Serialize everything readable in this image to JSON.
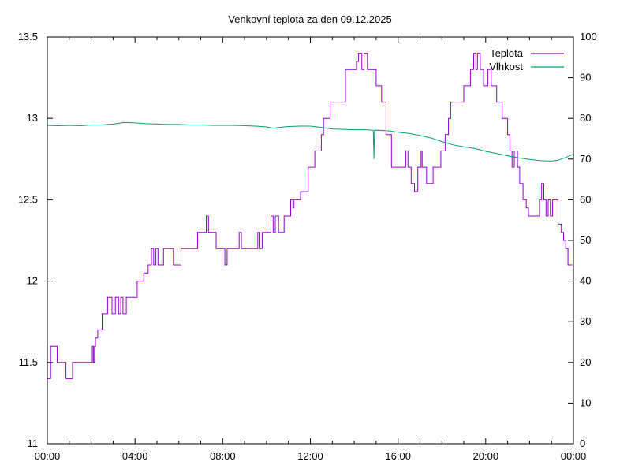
{
  "title": "Venkovní teplota za den 09.12.2025",
  "legend": [
    {
      "label": "Teplota",
      "color": "#9400d3"
    },
    {
      "label": "Vlhkost",
      "color": "#009e73"
    }
  ],
  "colors": {
    "frame": "#000000",
    "text": "#000000",
    "background": "#ffffff"
  },
  "chart_data": {
    "type": "line",
    "title": "Venkovní teplota za den 09.12.2025",
    "xlabel": "",
    "ylabel_left": "",
    "ylabel_right": "",
    "x_unit": "hours",
    "xlim": [
      0,
      24
    ],
    "ylim_left": [
      11,
      13.5
    ],
    "ylim_right": [
      0,
      100
    ],
    "grid": false,
    "legend_position": "top-right-inside",
    "x_ticks_major": [
      0,
      4,
      8,
      12,
      16,
      20,
      24
    ],
    "x_tick_labels": [
      "00:00",
      "04:00",
      "08:00",
      "12:00",
      "16:00",
      "20:00",
      "00:00"
    ],
    "x_ticks_minor": [
      1,
      2,
      3,
      5,
      6,
      7,
      9,
      10,
      11,
      13,
      14,
      15,
      17,
      18,
      19,
      21,
      22,
      23
    ],
    "y_left_ticks": [
      11,
      11.5,
      12,
      12.5,
      13,
      13.5
    ],
    "y_left_tick_labels": [
      "11",
      "11.5",
      "12",
      "12.5",
      "13",
      "13.5"
    ],
    "y_right_ticks": [
      0,
      10,
      20,
      30,
      40,
      50,
      60,
      70,
      80,
      90,
      100
    ],
    "y_right_tick_labels": [
      "0",
      "10",
      "20",
      "30",
      "40",
      "50",
      "60",
      "70",
      "80",
      "90",
      "100"
    ],
    "series": [
      {
        "name": "Teplota",
        "axis": "left",
        "color": "#9400d3",
        "mode": "steps-post",
        "points": [
          [
            0.0,
            11.4
          ],
          [
            0.15,
            11.6
          ],
          [
            0.45,
            11.5
          ],
          [
            0.85,
            11.4
          ],
          [
            1.15,
            11.5
          ],
          [
            2.05,
            11.6
          ],
          [
            2.1,
            11.5
          ],
          [
            2.15,
            11.6
          ],
          [
            2.2,
            11.65
          ],
          [
            2.3,
            11.7
          ],
          [
            2.5,
            11.8
          ],
          [
            2.75,
            11.9
          ],
          [
            2.95,
            11.8
          ],
          [
            3.1,
            11.9
          ],
          [
            3.25,
            11.8
          ],
          [
            3.35,
            11.9
          ],
          [
            3.45,
            11.8
          ],
          [
            3.6,
            11.9
          ],
          [
            4.1,
            12.0
          ],
          [
            4.4,
            12.05
          ],
          [
            4.6,
            12.1
          ],
          [
            4.75,
            12.2
          ],
          [
            4.85,
            12.1
          ],
          [
            4.95,
            12.2
          ],
          [
            5.05,
            12.1
          ],
          [
            5.3,
            12.2
          ],
          [
            5.75,
            12.1
          ],
          [
            6.1,
            12.2
          ],
          [
            6.85,
            12.3
          ],
          [
            7.25,
            12.4
          ],
          [
            7.35,
            12.3
          ],
          [
            7.7,
            12.2
          ],
          [
            8.1,
            12.1
          ],
          [
            8.2,
            12.2
          ],
          [
            8.75,
            12.3
          ],
          [
            8.85,
            12.2
          ],
          [
            9.6,
            12.3
          ],
          [
            9.7,
            12.2
          ],
          [
            9.8,
            12.3
          ],
          [
            10.2,
            12.4
          ],
          [
            10.3,
            12.3
          ],
          [
            10.4,
            12.4
          ],
          [
            10.55,
            12.3
          ],
          [
            10.8,
            12.4
          ],
          [
            11.1,
            12.5
          ],
          [
            11.2,
            12.45
          ],
          [
            11.25,
            12.5
          ],
          [
            11.55,
            12.55
          ],
          [
            11.9,
            12.7
          ],
          [
            12.2,
            12.8
          ],
          [
            12.5,
            12.9
          ],
          [
            12.6,
            13.0
          ],
          [
            12.9,
            13.1
          ],
          [
            13.6,
            13.3
          ],
          [
            14.1,
            13.35
          ],
          [
            14.2,
            13.4
          ],
          [
            14.35,
            13.3
          ],
          [
            14.45,
            13.4
          ],
          [
            14.6,
            13.3
          ],
          [
            15.0,
            13.2
          ],
          [
            15.25,
            13.1
          ],
          [
            15.45,
            12.9
          ],
          [
            15.7,
            12.7
          ],
          [
            16.35,
            12.8
          ],
          [
            16.45,
            12.7
          ],
          [
            16.6,
            12.6
          ],
          [
            16.75,
            12.55
          ],
          [
            16.9,
            12.7
          ],
          [
            17.05,
            12.8
          ],
          [
            17.1,
            12.7
          ],
          [
            17.3,
            12.6
          ],
          [
            17.6,
            12.7
          ],
          [
            17.95,
            12.8
          ],
          [
            18.15,
            12.9
          ],
          [
            18.3,
            13.0
          ],
          [
            18.4,
            13.1
          ],
          [
            19.0,
            13.2
          ],
          [
            19.3,
            13.3
          ],
          [
            19.45,
            13.4
          ],
          [
            19.55,
            13.3
          ],
          [
            19.62,
            13.4
          ],
          [
            19.75,
            13.3
          ],
          [
            19.9,
            13.2
          ],
          [
            20.1,
            13.3
          ],
          [
            20.25,
            13.2
          ],
          [
            20.5,
            13.1
          ],
          [
            20.75,
            13.0
          ],
          [
            21.0,
            12.9
          ],
          [
            21.1,
            12.8
          ],
          [
            21.2,
            12.7
          ],
          [
            21.3,
            12.8
          ],
          [
            21.45,
            12.7
          ],
          [
            21.55,
            12.6
          ],
          [
            21.7,
            12.5
          ],
          [
            21.85,
            12.45
          ],
          [
            21.95,
            12.4
          ],
          [
            22.45,
            12.5
          ],
          [
            22.55,
            12.6
          ],
          [
            22.65,
            12.5
          ],
          [
            22.75,
            12.4
          ],
          [
            22.85,
            12.5
          ],
          [
            22.95,
            12.4
          ],
          [
            23.05,
            12.5
          ],
          [
            23.3,
            12.35
          ],
          [
            23.45,
            12.3
          ],
          [
            23.55,
            12.25
          ],
          [
            23.65,
            12.2
          ],
          [
            23.75,
            12.1
          ],
          [
            23.95,
            12.1
          ]
        ]
      },
      {
        "name": "Vlhkost",
        "axis": "right",
        "color": "#009e73",
        "mode": "linear",
        "points": [
          [
            0,
            78.3
          ],
          [
            0.5,
            78.2
          ],
          [
            1,
            78.3
          ],
          [
            1.5,
            78.2
          ],
          [
            2,
            78.4
          ],
          [
            2.5,
            78.4
          ],
          [
            3,
            78.6
          ],
          [
            3.5,
            79.0
          ],
          [
            4,
            78.9
          ],
          [
            4.5,
            78.7
          ],
          [
            5,
            78.6
          ],
          [
            5.5,
            78.5
          ],
          [
            6,
            78.5
          ],
          [
            6.5,
            78.4
          ],
          [
            7,
            78.4
          ],
          [
            7.5,
            78.3
          ],
          [
            8,
            78.3
          ],
          [
            8.5,
            78.3
          ],
          [
            9,
            78.2
          ],
          [
            9.5,
            78.1
          ],
          [
            10,
            77.9
          ],
          [
            10.3,
            77.6
          ],
          [
            10.6,
            77.8
          ],
          [
            11,
            78.0
          ],
          [
            11.5,
            78.1
          ],
          [
            12,
            78.1
          ],
          [
            12.5,
            77.8
          ],
          [
            13,
            77.4
          ],
          [
            13.5,
            77.3
          ],
          [
            14,
            77.2
          ],
          [
            14.5,
            77.2
          ],
          [
            14.87,
            77.1
          ],
          [
            14.9,
            70.0
          ],
          [
            14.93,
            77.1
          ],
          [
            15.5,
            77.0
          ],
          [
            16,
            76.6
          ],
          [
            16.5,
            76.3
          ],
          [
            17,
            75.8
          ],
          [
            17.5,
            75.2
          ],
          [
            18,
            74.3
          ],
          [
            18.5,
            73.5
          ],
          [
            19,
            73.0
          ],
          [
            19.5,
            72.6
          ],
          [
            20,
            71.9
          ],
          [
            20.5,
            71.4
          ],
          [
            21,
            70.8
          ],
          [
            21.5,
            70.3
          ],
          [
            22,
            69.9
          ],
          [
            22.5,
            69.6
          ],
          [
            23,
            69.5
          ],
          [
            23.3,
            69.7
          ],
          [
            23.6,
            70.3
          ],
          [
            24,
            71.2
          ]
        ]
      }
    ]
  }
}
